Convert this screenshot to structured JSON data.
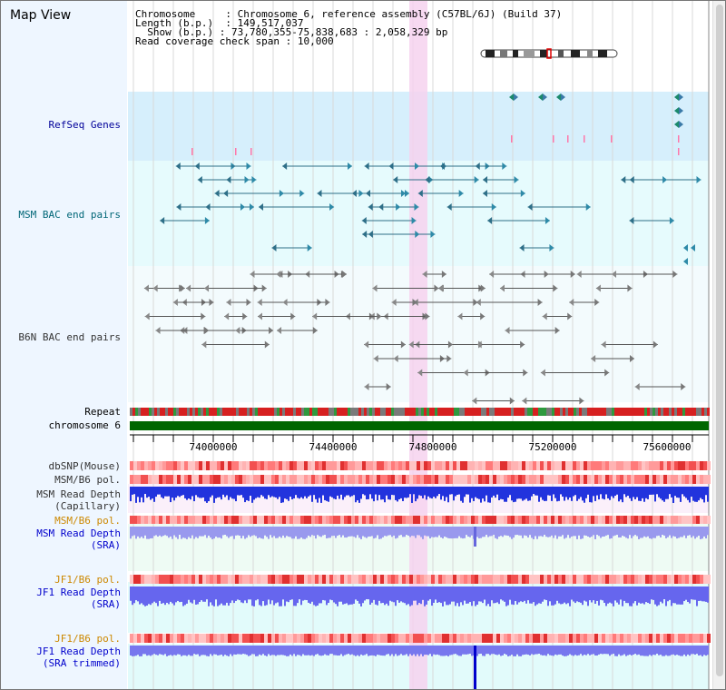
{
  "title": "Map View",
  "info": {
    "chromosome_label": "Chromosome",
    "chromosome_value": "Chromosome 6, reference assembly (C57BL/6J) (Build 37)",
    "length_label": "Length (b.p.)",
    "length_value": "149,517,037",
    "show_label": "Show (b.p.)",
    "show_value": "73,780,355-75,838,683 : 2,058,329 bp",
    "coverage_label": "Read coverage check span",
    "coverage_value": "10,000"
  },
  "labels": {
    "refseq": "RefSeq Genes",
    "msm_bac": "MSM BAC end pairs",
    "b6n_bac": "B6N BAC end pairs",
    "repeat": "Repeat",
    "chromosome": "chromosome 6",
    "dbsnp": "dbSNP(Mouse)",
    "msm_b6_pol": "MSM/B6 pol.",
    "msm_depth_cap_1": "MSM Read Depth",
    "msm_depth_cap_2": "(Capillary)",
    "msm_b6_pol2": "MSM/B6 pol.",
    "msm_depth_sra_1": "MSM Read Depth",
    "msm_depth_sra_2": "(SRA)",
    "jf1_pol": "JF1/B6 pol.",
    "jf1_depth_1": "JF1 Read Depth",
    "jf1_depth_2": "(SRA)",
    "jf1_pol2": "JF1/B6 pol.",
    "jf1_trim_1": "JF1 Read Depth",
    "jf1_trim_2": "(SRA trimmed)"
  },
  "axis_ticks": [
    "74000000",
    "74400000",
    "74800000",
    "75200000",
    "75600000"
  ],
  "colors": {
    "refseq_label": "#000099",
    "msm_label": "#006677",
    "b6n_label": "#333333",
    "pol_orange": "#cc8800",
    "depth_blue": "#0000cc",
    "highlight": "#f6d2ef",
    "chromosome_bar": "#006600"
  }
}
